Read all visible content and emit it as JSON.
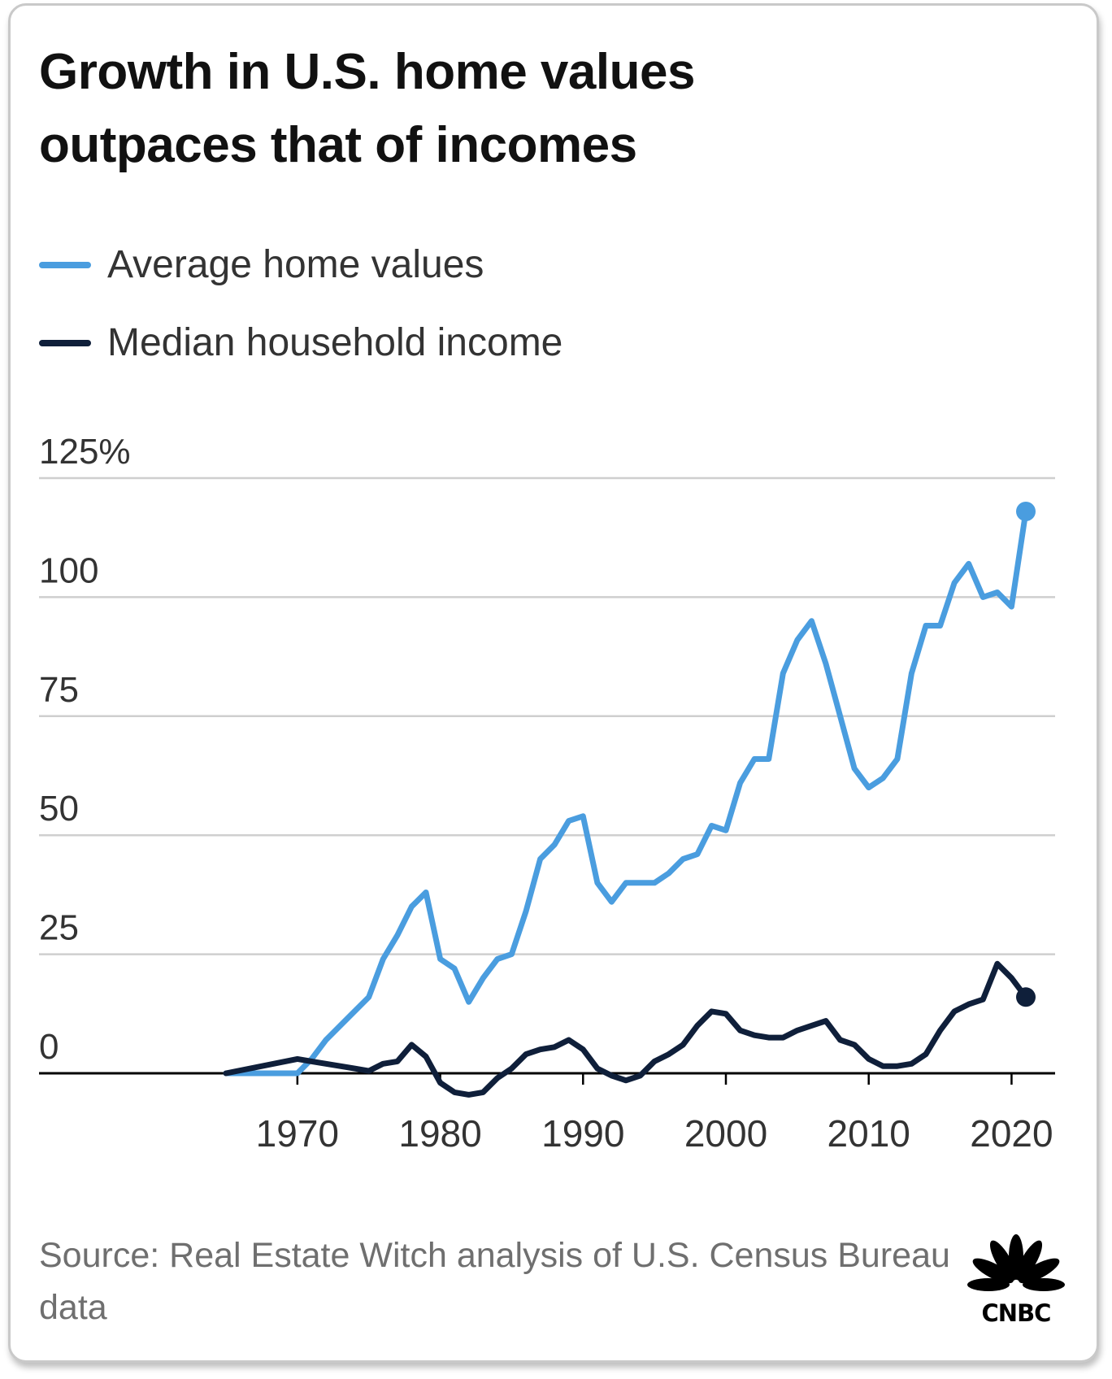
{
  "title": {
    "line1": "Growth in U.S. home values",
    "line2": "outpaces that of incomes"
  },
  "legend": [
    {
      "label": "Average home values",
      "color": "#4a9ddf"
    },
    {
      "label": "Median household income",
      "color": "#0f1f3a"
    }
  ],
  "source": "Source: Real Estate Witch analysis of U.S. Census Bureau data",
  "logo": {
    "text": "CNBC",
    "icon": "cnbc-peacock-icon"
  },
  "chart_data": {
    "type": "line",
    "title": "Growth in U.S. home values outpaces that of incomes",
    "xlabel": "",
    "ylabel": "",
    "xlim": [
      1965,
      2021
    ],
    "ylim": [
      0,
      125
    ],
    "x_ticks": [
      1970,
      1980,
      1990,
      2000,
      2010,
      2020
    ],
    "y_ticks": [
      0,
      25,
      50,
      75,
      100,
      125
    ],
    "y_tick_labels": [
      "0",
      "25",
      "50",
      "75",
      "100",
      "125%"
    ],
    "grid": true,
    "legend_position": "top-left",
    "series": [
      {
        "name": "Average home values",
        "color": "#4a9ddf",
        "end_marker": true,
        "x": [
          1965,
          1970,
          1971,
          1972,
          1973,
          1974,
          1975,
          1976,
          1977,
          1978,
          1979,
          1980,
          1981,
          1982,
          1983,
          1984,
          1985,
          1986,
          1987,
          1988,
          1989,
          1990,
          1991,
          1992,
          1993,
          1994,
          1995,
          1996,
          1997,
          1998,
          1999,
          2000,
          2001,
          2002,
          2003,
          2004,
          2005,
          2006,
          2007,
          2008,
          2009,
          2010,
          2011,
          2012,
          2013,
          2014,
          2015,
          2016,
          2017,
          2018,
          2019,
          2020,
          2021
        ],
        "y": [
          0,
          0,
          3,
          7,
          10,
          13,
          16,
          24,
          29,
          35,
          38,
          24,
          22,
          15,
          20,
          24,
          25,
          34,
          45,
          48,
          53,
          54,
          40,
          36,
          40,
          40,
          40,
          42,
          45,
          46,
          52,
          51,
          61,
          66,
          66,
          84,
          91,
          95,
          86,
          75,
          64,
          60,
          62,
          66,
          84,
          94,
          94,
          103,
          107,
          100,
          101,
          98,
          118
        ]
      },
      {
        "name": "Median household income",
        "color": "#0f1f3a",
        "end_marker": true,
        "x": [
          1965,
          1970,
          1971,
          1972,
          1973,
          1974,
          1975,
          1976,
          1977,
          1978,
          1979,
          1980,
          1981,
          1982,
          1983,
          1984,
          1985,
          1986,
          1987,
          1988,
          1989,
          1990,
          1991,
          1992,
          1993,
          1994,
          1995,
          1996,
          1997,
          1998,
          1999,
          2000,
          2001,
          2002,
          2003,
          2004,
          2005,
          2006,
          2007,
          2008,
          2009,
          2010,
          2011,
          2012,
          2013,
          2014,
          2015,
          2016,
          2017,
          2018,
          2019,
          2020,
          2021
        ],
        "y": [
          0,
          3,
          2.5,
          2,
          1.5,
          1,
          0.5,
          2,
          2.5,
          6,
          3.5,
          -2,
          -4,
          -4.5,
          -4,
          -1,
          1,
          4,
          5,
          5.5,
          7,
          5,
          1,
          -0.5,
          -1.5,
          -0.5,
          2.5,
          4,
          6,
          10,
          13,
          12.5,
          9,
          8,
          7.5,
          7.5,
          9,
          10,
          11,
          7,
          6,
          3,
          1.5,
          1.5,
          2,
          4,
          9,
          13,
          14.5,
          15.5,
          23,
          20,
          16
        ]
      }
    ]
  }
}
